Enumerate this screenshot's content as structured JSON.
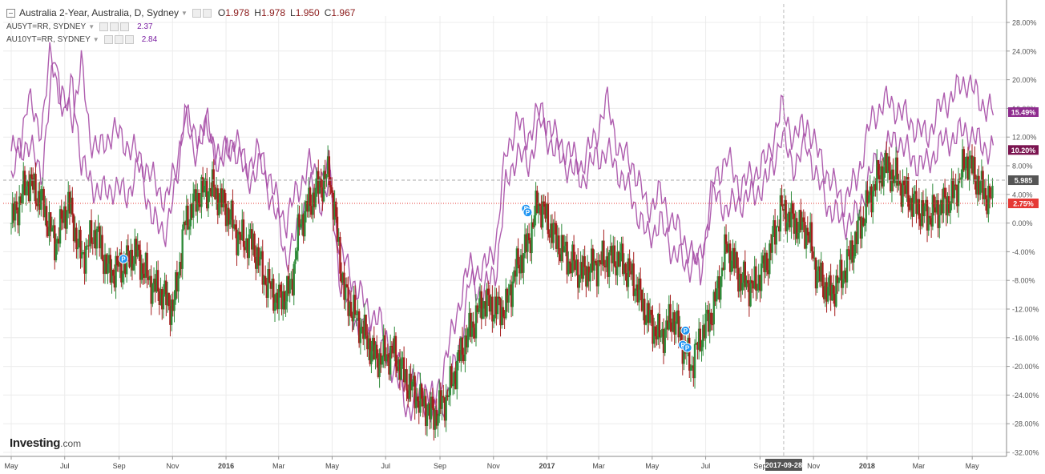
{
  "legend": {
    "main_title": "Australia 2-Year, Australia, D, Sydney",
    "open_label": "O",
    "open_value": "1.978",
    "high_label": "H",
    "high_value": "1.978",
    "low_label": "L",
    "low_value": "1.950",
    "close_label": "C",
    "close_value": "1.967",
    "studies": [
      {
        "name": "AU5YT=RR, SYDNEY",
        "value": "2.37"
      },
      {
        "name": "AU10YT=RR, SYDNEY",
        "value": "2.84"
      }
    ]
  },
  "logo": {
    "brand": "Investing",
    "suffix": ".com"
  },
  "colors": {
    "up": "#2e8b3a",
    "down": "#a51d1d",
    "compare": "#a64ca6",
    "grid": "#ececec",
    "price_line": "#e53935",
    "badge_dark": "#7b1450",
    "badge_purple": "#8e2c8e",
    "badge_gray": "#555555",
    "pin": "#2196f3"
  },
  "chart_data": {
    "type": "candlestick",
    "title": "Australia 2-Year, Australia, D, Sydney",
    "y_axis": {
      "unit": "%",
      "ticks": [
        "28.00%",
        "24.00%",
        "20.00%",
        "16.00%",
        "12.00%",
        "8.00%",
        "4.00%",
        "0.00%",
        "-4.00%",
        "-8.00%",
        "-12.00%",
        "-16.00%",
        "-20.00%",
        "-24.00%",
        "-28.00%",
        "-32.00%"
      ],
      "range": [
        -32,
        28
      ]
    },
    "x_axis": {
      "ticks": [
        "May",
        "Jul",
        "Sep",
        "Nov",
        "2016",
        "Mar",
        "May",
        "Jul",
        "Sep",
        "Nov",
        "2017",
        "Mar",
        "May",
        "Jul",
        "Sep",
        "Nov",
        "2018",
        "Mar",
        "May"
      ],
      "range": [
        "2015-05-01",
        "2018-05-31"
      ],
      "crosshair_date": "2017-09-28"
    },
    "price_labels": [
      {
        "value": 15.49,
        "text": "15.49%",
        "kind": "purple"
      },
      {
        "value": 10.2,
        "text": "10.20%",
        "kind": "dark"
      },
      {
        "value": 5.985,
        "text": "5.985",
        "kind": "gray"
      },
      {
        "value": 2.75,
        "text": "2.75%",
        "kind": "red"
      }
    ],
    "markers": [
      {
        "date": "2015-09-06",
        "value": -5.0,
        "label": "P"
      },
      {
        "date": "2016-12-08",
        "value": 2.0,
        "label": "P"
      },
      {
        "date": "2016-12-10",
        "value": 1.5,
        "label": "P"
      },
      {
        "date": "2017-06-08",
        "value": -15.0,
        "label": "P"
      },
      {
        "date": "2017-06-05",
        "value": -17.0,
        "label": "P"
      },
      {
        "date": "2017-06-10",
        "value": -17.4,
        "label": "P"
      }
    ],
    "series": [
      {
        "name": "Australia 2-Year",
        "kind": "candles",
        "points": [
          [
            "2015-05-01",
            0
          ],
          [
            "2015-05-20",
            6
          ],
          [
            "2015-06-05",
            3
          ],
          [
            "2015-06-20",
            -3
          ],
          [
            "2015-07-05",
            3
          ],
          [
            "2015-07-20",
            -5
          ],
          [
            "2015-08-05",
            -1
          ],
          [
            "2015-08-20",
            -7
          ],
          [
            "2015-09-05",
            -6
          ],
          [
            "2015-09-20",
            -4
          ],
          [
            "2015-10-05",
            -8
          ],
          [
            "2015-10-20",
            -10
          ],
          [
            "2015-11-02",
            -12
          ],
          [
            "2015-11-15",
            0
          ],
          [
            "2015-12-01",
            4
          ],
          [
            "2015-12-15",
            5
          ],
          [
            "2016-01-01",
            2
          ],
          [
            "2016-01-15",
            -2
          ],
          [
            "2016-02-01",
            -3
          ],
          [
            "2016-02-15",
            -8
          ],
          [
            "2016-03-01",
            -11
          ],
          [
            "2016-03-15",
            -9
          ],
          [
            "2016-03-25",
            0
          ],
          [
            "2016-04-15",
            5
          ],
          [
            "2016-04-28",
            7
          ],
          [
            "2016-05-15",
            -10
          ],
          [
            "2016-06-01",
            -14
          ],
          [
            "2016-06-20",
            -19
          ],
          [
            "2016-07-10",
            -18
          ],
          [
            "2016-07-25",
            -22
          ],
          [
            "2016-08-10",
            -25
          ],
          [
            "2016-08-25",
            -27
          ],
          [
            "2016-09-10",
            -24
          ],
          [
            "2016-09-20",
            -20
          ],
          [
            "2016-10-01",
            -16
          ],
          [
            "2016-10-20",
            -11
          ],
          [
            "2016-11-05",
            -12
          ],
          [
            "2016-11-15",
            -12
          ],
          [
            "2016-11-25",
            -7
          ],
          [
            "2016-12-10",
            -3
          ],
          [
            "2016-12-22",
            3
          ],
          [
            "2017-01-10",
            -2
          ],
          [
            "2017-01-25",
            -5
          ],
          [
            "2017-02-10",
            -7
          ],
          [
            "2017-02-25",
            -6
          ],
          [
            "2017-03-10",
            -5
          ],
          [
            "2017-03-25",
            -5
          ],
          [
            "2017-04-10",
            -8
          ],
          [
            "2017-04-25",
            -13
          ],
          [
            "2017-05-10",
            -16
          ],
          [
            "2017-05-25",
            -13
          ],
          [
            "2017-06-05",
            -17
          ],
          [
            "2017-06-15",
            -20
          ],
          [
            "2017-06-25",
            -16
          ],
          [
            "2017-07-10",
            -12
          ],
          [
            "2017-07-25",
            -3
          ],
          [
            "2017-08-10",
            -8
          ],
          [
            "2017-08-25",
            -9
          ],
          [
            "2017-09-10",
            -5
          ],
          [
            "2017-09-25",
            2
          ],
          [
            "2017-10-10",
            0
          ],
          [
            "2017-10-25",
            -1
          ],
          [
            "2017-11-05",
            -7
          ],
          [
            "2017-11-20",
            -10
          ],
          [
            "2017-12-05",
            -7
          ],
          [
            "2017-12-20",
            -2
          ],
          [
            "2018-01-05",
            4
          ],
          [
            "2018-01-20",
            8
          ],
          [
            "2018-02-05",
            6
          ],
          [
            "2018-02-20",
            3
          ],
          [
            "2018-03-10",
            1
          ],
          [
            "2018-03-25",
            2
          ],
          [
            "2018-04-10",
            4
          ],
          [
            "2018-04-25",
            9
          ],
          [
            "2018-05-10",
            5
          ],
          [
            "2018-05-25",
            2.75
          ]
        ]
      },
      {
        "name": "AU5YT=RR, SYDNEY",
        "kind": "line",
        "points": [
          [
            "2015-05-01",
            10
          ],
          [
            "2015-05-20",
            11
          ],
          [
            "2015-06-05",
            7
          ],
          [
            "2015-06-20",
            24
          ],
          [
            "2015-07-01",
            14
          ],
          [
            "2015-07-10",
            20
          ],
          [
            "2015-07-20",
            8
          ],
          [
            "2015-07-30",
            6
          ],
          [
            "2015-08-10",
            4
          ],
          [
            "2015-08-25",
            5
          ],
          [
            "2015-09-10",
            4
          ],
          [
            "2015-09-25",
            8
          ],
          [
            "2015-10-10",
            0
          ],
          [
            "2015-10-25",
            -1
          ],
          [
            "2015-11-05",
            5
          ],
          [
            "2015-11-15",
            16
          ],
          [
            "2015-11-25",
            12
          ],
          [
            "2015-12-10",
            14
          ],
          [
            "2015-12-25",
            8
          ],
          [
            "2016-01-10",
            11
          ],
          [
            "2016-01-25",
            6
          ],
          [
            "2016-02-10",
            8
          ],
          [
            "2016-02-25",
            2
          ],
          [
            "2016-03-10",
            -5
          ],
          [
            "2016-03-20",
            -2
          ],
          [
            "2016-04-05",
            5
          ],
          [
            "2016-04-20",
            3
          ],
          [
            "2016-04-28",
            6
          ],
          [
            "2016-05-10",
            -8
          ],
          [
            "2016-05-25",
            -13
          ],
          [
            "2016-06-10",
            -16
          ],
          [
            "2016-06-25",
            -18
          ],
          [
            "2016-07-10",
            -20
          ],
          [
            "2016-07-25",
            -26
          ],
          [
            "2016-08-10",
            -24
          ],
          [
            "2016-08-25",
            -27
          ],
          [
            "2016-09-10",
            -24
          ],
          [
            "2016-09-25",
            -16
          ],
          [
            "2016-10-05",
            -8
          ],
          [
            "2016-10-20",
            -10
          ],
          [
            "2016-11-05",
            -6
          ],
          [
            "2016-11-15",
            5
          ],
          [
            "2016-11-28",
            10
          ],
          [
            "2016-12-10",
            8
          ],
          [
            "2016-12-25",
            14
          ],
          [
            "2017-01-10",
            10
          ],
          [
            "2017-01-25",
            8
          ],
          [
            "2017-02-10",
            6
          ],
          [
            "2017-02-25",
            9
          ],
          [
            "2017-03-10",
            10
          ],
          [
            "2017-03-25",
            7
          ],
          [
            "2017-04-10",
            3
          ],
          [
            "2017-04-25",
            -2
          ],
          [
            "2017-05-10",
            0
          ],
          [
            "2017-05-25",
            -4
          ],
          [
            "2017-06-10",
            -6
          ],
          [
            "2017-06-25",
            -5
          ],
          [
            "2017-07-10",
            4
          ],
          [
            "2017-07-25",
            2
          ],
          [
            "2017-08-10",
            3
          ],
          [
            "2017-08-25",
            4
          ],
          [
            "2017-09-10",
            6
          ],
          [
            "2017-09-25",
            12
          ],
          [
            "2017-10-10",
            8
          ],
          [
            "2017-10-25",
            11
          ],
          [
            "2017-11-05",
            6
          ],
          [
            "2017-11-20",
            2
          ],
          [
            "2017-12-05",
            0
          ],
          [
            "2017-12-20",
            1
          ],
          [
            "2018-01-05",
            7
          ],
          [
            "2018-01-20",
            10
          ],
          [
            "2018-02-05",
            12
          ],
          [
            "2018-02-20",
            9
          ],
          [
            "2018-03-10",
            8
          ],
          [
            "2018-03-25",
            11
          ],
          [
            "2018-04-10",
            12
          ],
          [
            "2018-04-25",
            13
          ],
          [
            "2018-05-10",
            11
          ],
          [
            "2018-05-25",
            10.2
          ]
        ]
      },
      {
        "name": "AU10YT=RR, SYDNEY",
        "kind": "line",
        "points": [
          [
            "2015-05-01",
            5
          ],
          [
            "2015-05-20",
            17
          ],
          [
            "2015-06-05",
            13
          ],
          [
            "2015-06-15",
            24
          ],
          [
            "2015-06-25",
            18
          ],
          [
            "2015-07-10",
            15
          ],
          [
            "2015-07-20",
            22
          ],
          [
            "2015-07-30",
            12
          ],
          [
            "2015-08-10",
            10
          ],
          [
            "2015-08-25",
            13
          ],
          [
            "2015-09-10",
            11
          ],
          [
            "2015-09-25",
            9
          ],
          [
            "2015-10-10",
            6
          ],
          [
            "2015-10-25",
            3
          ],
          [
            "2015-11-05",
            8
          ],
          [
            "2015-11-15",
            15
          ],
          [
            "2015-11-25",
            10
          ],
          [
            "2015-12-10",
            13
          ],
          [
            "2015-12-25",
            9
          ],
          [
            "2016-01-10",
            12
          ],
          [
            "2016-01-25",
            8
          ],
          [
            "2016-02-10",
            10
          ],
          [
            "2016-02-25",
            4
          ],
          [
            "2016-03-10",
            0
          ],
          [
            "2016-03-20",
            4
          ],
          [
            "2016-04-05",
            8
          ],
          [
            "2016-04-20",
            6
          ],
          [
            "2016-04-28",
            8
          ],
          [
            "2016-05-10",
            -4
          ],
          [
            "2016-05-25",
            -8
          ],
          [
            "2016-06-10",
            -12
          ],
          [
            "2016-06-25",
            -14
          ],
          [
            "2016-07-10",
            -18
          ],
          [
            "2016-07-25",
            -23
          ],
          [
            "2016-08-10",
            -22
          ],
          [
            "2016-08-25",
            -25
          ],
          [
            "2016-09-10",
            -18
          ],
          [
            "2016-09-25",
            -10
          ],
          [
            "2016-10-05",
            -6
          ],
          [
            "2016-10-20",
            -7
          ],
          [
            "2016-11-05",
            -2
          ],
          [
            "2016-11-15",
            10
          ],
          [
            "2016-11-28",
            14
          ],
          [
            "2016-12-10",
            12
          ],
          [
            "2016-12-25",
            16
          ],
          [
            "2017-01-10",
            12
          ],
          [
            "2017-01-25",
            10
          ],
          [
            "2017-02-10",
            8
          ],
          [
            "2017-02-25",
            12
          ],
          [
            "2017-03-10",
            17
          ],
          [
            "2017-03-25",
            10
          ],
          [
            "2017-04-10",
            8
          ],
          [
            "2017-04-25",
            2
          ],
          [
            "2017-05-10",
            4
          ],
          [
            "2017-05-25",
            0
          ],
          [
            "2017-06-10",
            -3
          ],
          [
            "2017-06-25",
            -7
          ],
          [
            "2017-07-10",
            6
          ],
          [
            "2017-07-25",
            9
          ],
          [
            "2017-08-10",
            5
          ],
          [
            "2017-08-25",
            7
          ],
          [
            "2017-09-10",
            9
          ],
          [
            "2017-09-25",
            16
          ],
          [
            "2017-10-10",
            12
          ],
          [
            "2017-10-25",
            14
          ],
          [
            "2017-11-05",
            10
          ],
          [
            "2017-11-20",
            6
          ],
          [
            "2017-12-05",
            3
          ],
          [
            "2017-12-20",
            6
          ],
          [
            "2018-01-05",
            14
          ],
          [
            "2018-01-20",
            17
          ],
          [
            "2018-02-05",
            16
          ],
          [
            "2018-02-20",
            14
          ],
          [
            "2018-03-10",
            12
          ],
          [
            "2018-03-25",
            16
          ],
          [
            "2018-04-10",
            18
          ],
          [
            "2018-04-25",
            20
          ],
          [
            "2018-05-10",
            17
          ],
          [
            "2018-05-25",
            15.49
          ]
        ]
      }
    ]
  }
}
